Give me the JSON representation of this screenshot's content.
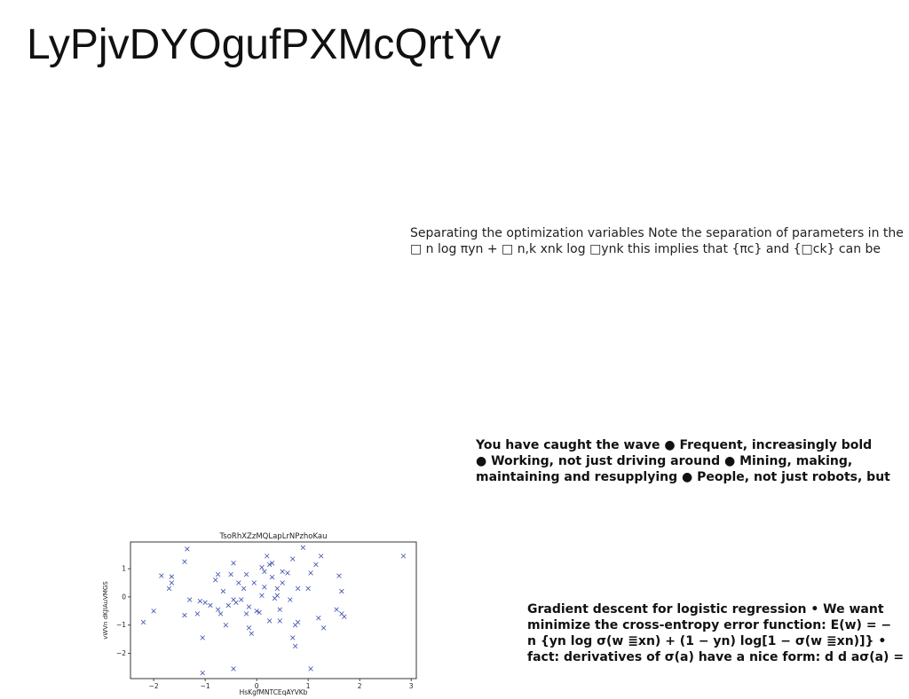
{
  "page": {
    "title": "LyPjvDYOgufPXMcQrtYv"
  },
  "paragraphs": {
    "p1": {
      "lines": [
        "Separating the optimization variables Note the separation of parameters in the",
        "□ n log πyn + □ n,k xnk log □ynk this implies that {πc} and {□ck} can be"
      ]
    },
    "p2": {
      "lines": [
        "You have caught the wave ● Frequent, increasingly bold",
        "● Working, not just driving around ● Mining, making,",
        "maintaining and resupplying ● People, not just robots, but"
      ]
    },
    "p3": {
      "lines": [
        "Gradient descent for logistic regression • We want",
        "minimize the cross-entropy error function: E(w) = −",
        "n {yn log σ(w ≣xn) + (1 − yn) log[1 − σ(w ≣xn)]} •",
        "fact: derivatives of σ(a) have a nice form: d d aσ(a) ="
      ]
    }
  },
  "chart_data": {
    "type": "scatter",
    "title": "TsoRhXZzMQLapLrNPzhoKau",
    "xlabel": "HsKgfMNTCEqAYVKb",
    "ylabel": "vWVn dKJIAuVMGS",
    "xlim": [
      -2.45,
      3.1
    ],
    "ylim": [
      -2.9,
      1.95
    ],
    "xticks": [
      "−2",
      "−1",
      "0",
      "1",
      "2",
      "3"
    ],
    "xtick_values": [
      -2,
      -1,
      0,
      1,
      2,
      3
    ],
    "yticks": [
      "−2",
      "−1",
      "0",
      "1"
    ],
    "ytick_values": [
      -2,
      -1,
      0,
      1
    ],
    "marker": "x",
    "color": "#3b4fb0",
    "grid": false,
    "points": [
      [
        -2.2,
        -0.9
      ],
      [
        -2.0,
        -0.5
      ],
      [
        -1.85,
        0.75
      ],
      [
        -1.7,
        0.3
      ],
      [
        -1.65,
        0.5
      ],
      [
        -1.65,
        0.72
      ],
      [
        -1.4,
        1.25
      ],
      [
        -1.35,
        1.7
      ],
      [
        -1.4,
        -0.65
      ],
      [
        -1.3,
        -0.1
      ],
      [
        -1.15,
        -0.6
      ],
      [
        -1.1,
        -0.15
      ],
      [
        -1.05,
        -1.45
      ],
      [
        -1.05,
        -2.7
      ],
      [
        -1.0,
        -0.2
      ],
      [
        -0.9,
        -0.3
      ],
      [
        -0.8,
        0.6
      ],
      [
        -0.75,
        -0.45
      ],
      [
        -0.75,
        0.8
      ],
      [
        -0.7,
        -0.6
      ],
      [
        -0.65,
        0.2
      ],
      [
        -0.6,
        -1.0
      ],
      [
        -0.55,
        -0.3
      ],
      [
        -0.5,
        0.8
      ],
      [
        -0.45,
        1.2
      ],
      [
        -0.45,
        -0.1
      ],
      [
        -0.45,
        -2.55
      ],
      [
        -0.4,
        -0.2
      ],
      [
        -0.35,
        0.5
      ],
      [
        -0.3,
        -0.1
      ],
      [
        -0.25,
        0.3
      ],
      [
        -0.2,
        -0.6
      ],
      [
        -0.2,
        0.8
      ],
      [
        -0.15,
        -0.35
      ],
      [
        -0.15,
        -1.1
      ],
      [
        -0.1,
        -1.3
      ],
      [
        -0.05,
        0.5
      ],
      [
        0.0,
        -0.5
      ],
      [
        0.05,
        -0.55
      ],
      [
        0.1,
        1.05
      ],
      [
        0.1,
        0.05
      ],
      [
        0.15,
        0.35
      ],
      [
        0.15,
        0.9
      ],
      [
        0.2,
        1.45
      ],
      [
        0.25,
        1.15
      ],
      [
        0.25,
        -0.85
      ],
      [
        0.3,
        1.2
      ],
      [
        0.3,
        0.7
      ],
      [
        0.35,
        -0.05
      ],
      [
        0.4,
        0.3
      ],
      [
        0.4,
        0.05
      ],
      [
        0.45,
        -0.45
      ],
      [
        0.45,
        -0.85
      ],
      [
        0.5,
        0.5
      ],
      [
        0.5,
        0.9
      ],
      [
        0.6,
        0.85
      ],
      [
        0.65,
        -0.1
      ],
      [
        0.7,
        1.35
      ],
      [
        0.7,
        -1.45
      ],
      [
        0.75,
        -1.0
      ],
      [
        0.75,
        -1.75
      ],
      [
        0.8,
        -0.9
      ],
      [
        0.8,
        0.3
      ],
      [
        0.9,
        1.75
      ],
      [
        1.0,
        0.3
      ],
      [
        1.05,
        0.85
      ],
      [
        1.05,
        -2.55
      ],
      [
        1.15,
        1.15
      ],
      [
        1.2,
        -0.75
      ],
      [
        1.25,
        1.45
      ],
      [
        1.3,
        -1.1
      ],
      [
        1.55,
        -0.45
      ],
      [
        1.6,
        0.75
      ],
      [
        1.65,
        -0.6
      ],
      [
        1.65,
        0.2
      ],
      [
        1.7,
        -0.7
      ],
      [
        2.85,
        1.45
      ]
    ]
  }
}
